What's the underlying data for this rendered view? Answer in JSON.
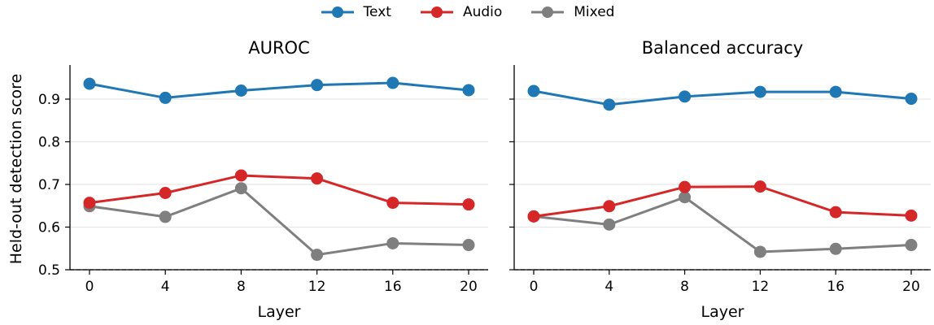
{
  "legend": {
    "items": [
      {
        "name": "Text",
        "color": "#1f77b4"
      },
      {
        "name": "Audio",
        "color": "#d62728"
      },
      {
        "name": "Mixed",
        "color": "#7f7f7f"
      }
    ]
  },
  "chart_data": [
    {
      "type": "line",
      "title": "AUROC",
      "xlabel": "Layer",
      "ylabel": "Held-out detection score",
      "x": [
        0,
        4,
        8,
        12,
        16,
        20
      ],
      "xticks": [
        "0",
        "4",
        "8",
        "12",
        "16",
        "20"
      ],
      "ylim": [
        0.5,
        0.98
      ],
      "yticks": [
        "0.5",
        "0.6",
        "0.7",
        "0.8",
        "0.9"
      ],
      "grid": "horizontal",
      "series": [
        {
          "name": "Text",
          "color": "#1f77b4",
          "values": [
            0.936,
            0.903,
            0.92,
            0.933,
            0.938,
            0.921
          ]
        },
        {
          "name": "Audio",
          "color": "#d62728",
          "values": [
            0.657,
            0.68,
            0.721,
            0.714,
            0.657,
            0.653
          ]
        },
        {
          "name": "Mixed",
          "color": "#7f7f7f",
          "values": [
            0.649,
            0.624,
            0.691,
            0.535,
            0.562,
            0.558
          ]
        }
      ]
    },
    {
      "type": "line",
      "title": "Balanced accuracy",
      "xlabel": "Layer",
      "ylabel": "",
      "x": [
        0,
        4,
        8,
        12,
        16,
        20
      ],
      "xticks": [
        "0",
        "4",
        "8",
        "12",
        "16",
        "20"
      ],
      "ylim": [
        0.5,
        0.98
      ],
      "yticks": [
        "0.5",
        "0.6",
        "0.7",
        "0.8",
        "0.9"
      ],
      "grid": "horizontal",
      "series": [
        {
          "name": "Text",
          "color": "#1f77b4",
          "values": [
            0.919,
            0.887,
            0.906,
            0.917,
            0.917,
            0.901
          ]
        },
        {
          "name": "Audio",
          "color": "#d62728",
          "values": [
            0.625,
            0.649,
            0.694,
            0.695,
            0.635,
            0.627
          ]
        },
        {
          "name": "Mixed",
          "color": "#7f7f7f",
          "values": [
            0.625,
            0.606,
            0.67,
            0.542,
            0.549,
            0.558
          ]
        }
      ]
    }
  ]
}
